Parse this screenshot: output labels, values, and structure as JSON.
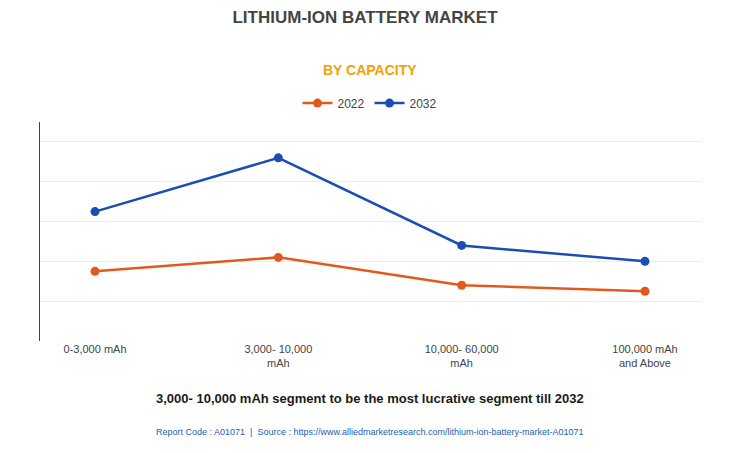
{
  "chart_data": {
    "type": "line",
    "title": "LITHIUM-ION BATTERY MARKET",
    "subtitle": "BY CAPACITY",
    "categories": [
      "0-3,000 mAh",
      "3,000- 10,000\nmAh",
      "10,000- 60,000\nmAh",
      "100,000 mAh\nand Above"
    ],
    "series": [
      {
        "name": "2022",
        "color": "#e05a1e",
        "marker": "circle",
        "values": [
          3.5,
          4.2,
          2.8,
          2.5
        ]
      },
      {
        "name": "2032",
        "color": "#1a4db5",
        "marker": "circle",
        "values": [
          6.5,
          9.2,
          4.8,
          4.0
        ]
      }
    ],
    "ylim": [
      0,
      11
    ],
    "yticks": [
      0,
      2,
      4,
      6,
      8,
      10
    ],
    "grid": true,
    "tick_labels": "x",
    "legend": "top",
    "annotations": [
      "3,000- 10,000 mAh segment to be the most lucrative segment till 2032",
      "Report Code : A01071  |  Source : https://www.alliedmarketresearch.com/lithium-ion-battery-market-A01071"
    ]
  }
}
